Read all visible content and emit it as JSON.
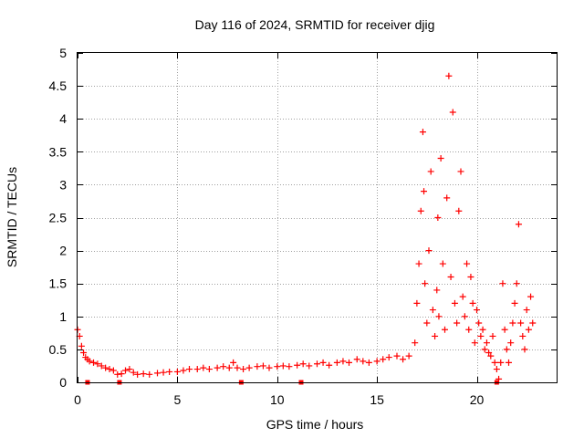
{
  "chart_data": {
    "type": "scatter",
    "title": "Day 116 of 2024, SRMTID for receiver djig",
    "xlabel": "GPS time / hours",
    "ylabel": "SRMTID / TECUs",
    "xlim": [
      0,
      24
    ],
    "ylim": [
      0,
      5
    ],
    "xticks": [
      0,
      5,
      10,
      15,
      20
    ],
    "xtick_labels": [
      "0",
      "5",
      "10",
      "15",
      "20"
    ],
    "yticks": [
      0,
      0.5,
      1,
      1.5,
      2,
      2.5,
      3,
      3.5,
      4,
      4.5,
      5
    ],
    "ytick_labels": [
      "0",
      "0.5",
      "1",
      "1.5",
      "2",
      "2.5",
      "3",
      "3.5",
      "4",
      "4.5",
      "5"
    ],
    "grid": true,
    "marker": "+",
    "series": [
      {
        "name": "SRMTID",
        "color": "#ff0000",
        "x": [
          0.0,
          0.1,
          0.2,
          0.3,
          0.4,
          0.5,
          0.6,
          0.8,
          1.0,
          1.2,
          1.4,
          1.6,
          1.8,
          2.0,
          2.2,
          2.4,
          2.6,
          2.8,
          3.0,
          3.3,
          3.6,
          4.0,
          4.3,
          4.6,
          5.0,
          5.3,
          5.6,
          6.0,
          6.3,
          6.6,
          7.0,
          7.3,
          7.6,
          7.8,
          8.0,
          8.3,
          8.6,
          9.0,
          9.3,
          9.6,
          10.0,
          10.3,
          10.6,
          11.0,
          11.3,
          11.6,
          12.0,
          12.3,
          12.6,
          13.0,
          13.3,
          13.6,
          14.0,
          14.3,
          14.6,
          15.0,
          15.3,
          15.6,
          16.0,
          16.3,
          16.6,
          16.9,
          17.0,
          17.1,
          17.2,
          17.3,
          17.35,
          17.4,
          17.5,
          17.6,
          17.7,
          17.8,
          17.9,
          18.0,
          18.05,
          18.1,
          18.2,
          18.3,
          18.4,
          18.5,
          18.6,
          18.7,
          18.8,
          18.9,
          19.0,
          19.1,
          19.2,
          19.3,
          19.4,
          19.5,
          19.6,
          19.7,
          19.8,
          19.9,
          20.0,
          20.1,
          20.2,
          20.3,
          20.4,
          20.5,
          20.6,
          20.7,
          20.8,
          20.9,
          21.0,
          21.1,
          21.2,
          21.3,
          21.4,
          21.5,
          21.6,
          21.7,
          21.8,
          21.9,
          22.0,
          22.1,
          22.2,
          22.3,
          22.4,
          22.5,
          22.6,
          22.7,
          22.8
        ],
        "y": [
          0.8,
          0.7,
          0.55,
          0.45,
          0.38,
          0.35,
          0.32,
          0.3,
          0.28,
          0.25,
          0.22,
          0.2,
          0.18,
          0.12,
          0.13,
          0.18,
          0.2,
          0.15,
          0.12,
          0.13,
          0.12,
          0.14,
          0.15,
          0.16,
          0.16,
          0.18,
          0.2,
          0.2,
          0.22,
          0.2,
          0.22,
          0.24,
          0.22,
          0.3,
          0.22,
          0.2,
          0.22,
          0.24,
          0.25,
          0.22,
          0.24,
          0.25,
          0.24,
          0.26,
          0.28,
          0.25,
          0.28,
          0.3,
          0.26,
          0.3,
          0.32,
          0.3,
          0.35,
          0.32,
          0.3,
          0.32,
          0.35,
          0.38,
          0.4,
          0.35,
          0.4,
          0.6,
          1.2,
          1.8,
          2.6,
          3.8,
          2.9,
          1.5,
          0.9,
          2.0,
          3.2,
          1.1,
          0.7,
          1.4,
          2.5,
          1.0,
          3.4,
          1.8,
          0.8,
          2.8,
          4.65,
          1.6,
          4.1,
          1.2,
          0.9,
          2.6,
          3.2,
          1.3,
          1.0,
          1.8,
          0.8,
          1.6,
          1.2,
          0.6,
          1.1,
          0.9,
          0.7,
          0.8,
          0.5,
          0.6,
          0.45,
          0.4,
          0.7,
          0.3,
          0.2,
          0.05,
          0.3,
          1.5,
          0.8,
          0.5,
          0.3,
          0.6,
          0.9,
          1.2,
          1.5,
          2.4,
          0.9,
          0.7,
          0.5,
          1.1,
          0.8,
          1.3,
          0.9
        ]
      }
    ],
    "axis_markers_x": [
      0.5,
      2.1,
      8.2,
      11.2,
      21.0
    ]
  }
}
